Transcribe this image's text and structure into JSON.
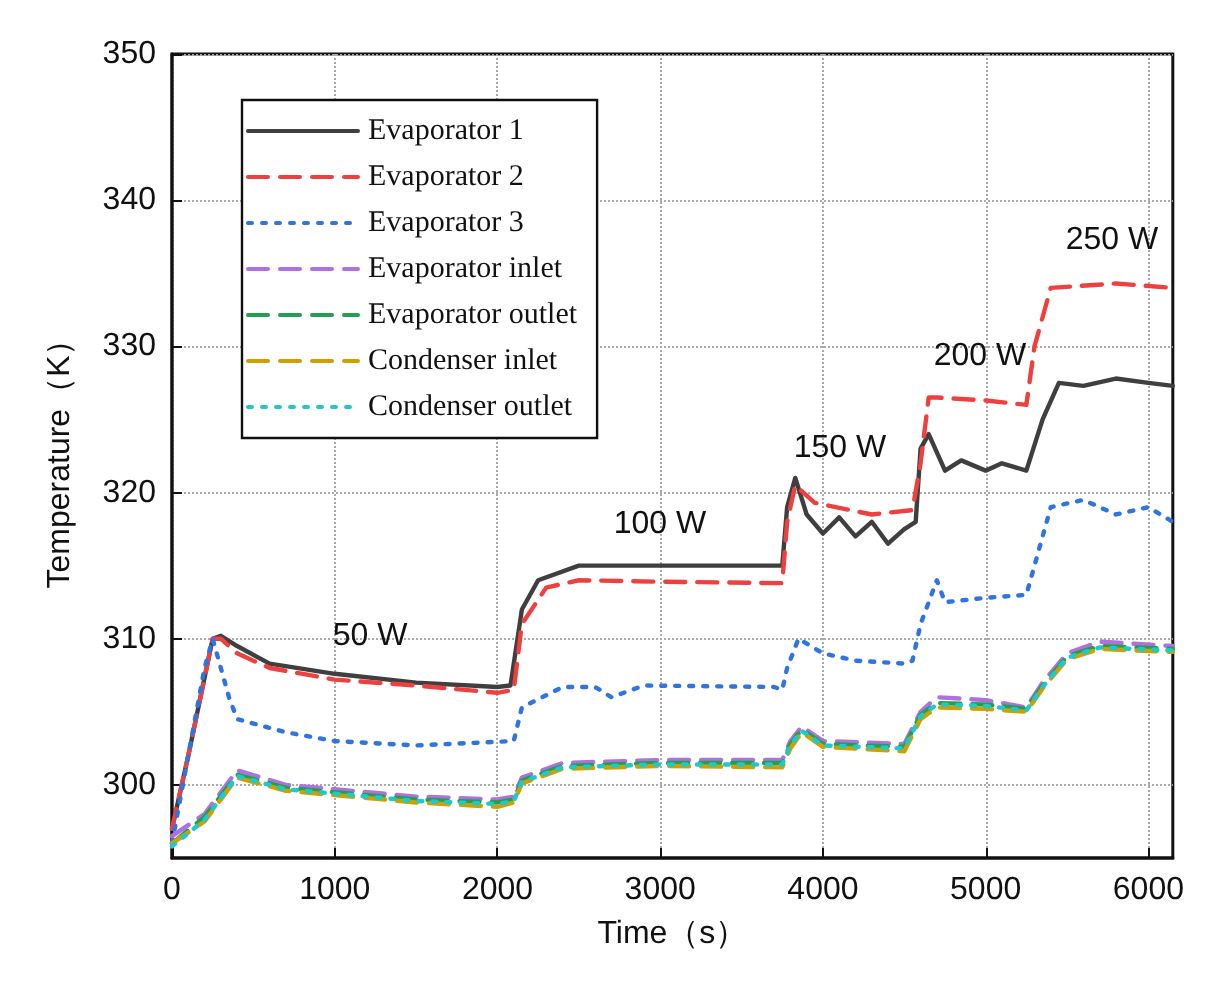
{
  "chart_data": {
    "type": "line",
    "xlabel": "Time（s）",
    "ylabel": "Temperature（K）",
    "xlim": [
      0,
      6150
    ],
    "ylim": [
      295,
      350
    ],
    "xticks": [
      0,
      1000,
      2000,
      3000,
      4000,
      5000,
      6000
    ],
    "yticks": [
      300,
      310,
      320,
      330,
      340,
      350
    ],
    "grid": true,
    "legend": "top left",
    "marker": "none",
    "annotations": [
      "50 W",
      "100 W",
      "150 W",
      "200 W",
      "250 W"
    ],
    "series": [
      {
        "name": "Evaporator 1",
        "color": "#3f3f3f",
        "line_style": "solid",
        "x": [
          0,
          100,
          250,
          300,
          400,
          600,
          1000,
          1500,
          2000,
          2080,
          2150,
          2250,
          2500,
          3000,
          3500,
          3750,
          3780,
          3830,
          3900,
          4000,
          4100,
          4200,
          4300,
          4400,
          4500,
          4570,
          4600,
          4650,
          4750,
          4850,
          5000,
          5100,
          5250,
          5350,
          5450,
          5600,
          5800,
          6000,
          6150
        ],
        "values": [
          297,
          302,
          310,
          310.2,
          309.5,
          308.3,
          307.6,
          307,
          306.7,
          306.8,
          312,
          314,
          315,
          315,
          315,
          315,
          319,
          321,
          318.5,
          317.2,
          318.3,
          317,
          318,
          316.5,
          317.5,
          318,
          323,
          324,
          321.5,
          322.2,
          321.5,
          322,
          321.5,
          325,
          327.5,
          327.3,
          327.8,
          327.5,
          327.3
        ]
      },
      {
        "name": "Evaporator 2",
        "color": "#ef4040",
        "line_style": "dashed",
        "x": [
          0,
          100,
          250,
          300,
          400,
          600,
          1000,
          1500,
          2000,
          2100,
          2150,
          2300,
          2500,
          3000,
          3750,
          3780,
          3830,
          3950,
          4300,
          4550,
          4600,
          4650,
          4700,
          5000,
          5250,
          5300,
          5400,
          5800,
          6150
        ],
        "values": [
          297,
          302,
          310,
          310,
          309,
          308,
          307.2,
          306.8,
          306.3,
          306.5,
          311,
          313.5,
          314,
          313.9,
          313.8,
          318,
          320.5,
          319.3,
          318.5,
          318.8,
          322,
          326.5,
          326.5,
          326.3,
          326,
          330,
          334,
          334.3,
          334
        ]
      },
      {
        "name": "Evaporator 3",
        "color": "#2f74e0",
        "line_style": "dotted",
        "x": [
          0,
          200,
          250,
          350,
          400,
          700,
          1000,
          1500,
          2100,
          2150,
          2400,
          2600,
          2700,
          2900,
          3700,
          3750,
          3780,
          3850,
          4000,
          4200,
          4500,
          4550,
          4600,
          4700,
          4750,
          5000,
          5250,
          5300,
          5400,
          5600,
          5800,
          6000,
          6150
        ],
        "values": [
          296,
          308,
          310,
          306,
          304.5,
          303.6,
          303,
          302.7,
          303,
          305.3,
          306.7,
          306.7,
          306,
          306.8,
          306.7,
          306.5,
          308,
          310,
          309,
          308.5,
          308.3,
          308.5,
          311,
          314,
          312.5,
          312.8,
          313,
          315,
          319,
          319.5,
          318.5,
          319,
          318
        ]
      },
      {
        "name": "Evaporator inlet",
        "color": "#b070e0",
        "line_style": "dashed",
        "x": [
          0,
          200,
          400,
          700,
          1000,
          1500,
          2000,
          2100,
          2150,
          2400,
          3000,
          3750,
          3800,
          3870,
          4000,
          4500,
          4600,
          4700,
          5000,
          5250,
          5350,
          5500,
          5700,
          6150
        ],
        "values": [
          296.5,
          298,
          301,
          300,
          299.7,
          299.2,
          299,
          299.2,
          300.5,
          301.5,
          301.7,
          301.7,
          303,
          304,
          303,
          302.8,
          305,
          306,
          305.8,
          305.3,
          307,
          309,
          309.8,
          309.5
        ]
      },
      {
        "name": "Evaporator outlet",
        "color": "#20a050",
        "line_style": "dashed",
        "x": [
          0,
          200,
          400,
          700,
          1000,
          1500,
          2000,
          2100,
          2150,
          2400,
          3000,
          3750,
          3800,
          3870,
          4000,
          4500,
          4600,
          4700,
          5000,
          5250,
          5350,
          5500,
          5700,
          6150
        ],
        "values": [
          296,
          297.8,
          300.7,
          299.8,
          299.5,
          299,
          298.8,
          299,
          300.3,
          301.3,
          301.5,
          301.5,
          302.8,
          303.8,
          302.8,
          302.6,
          304.8,
          305.6,
          305.5,
          305.2,
          306.8,
          308.8,
          309.5,
          309.3
        ]
      },
      {
        "name": "Condenser inlet",
        "color": "#d0a000",
        "line_style": "dashed",
        "x": [
          0,
          200,
          400,
          700,
          1000,
          1500,
          2000,
          2100,
          2150,
          2400,
          3000,
          3750,
          3800,
          3870,
          4000,
          4500,
          4600,
          4700,
          5000,
          5250,
          5350,
          5500,
          5700,
          6150
        ],
        "values": [
          296,
          297.5,
          300.5,
          299.6,
          299.3,
          298.8,
          298.5,
          298.8,
          300.1,
          301.1,
          301.3,
          301.2,
          302.5,
          303.6,
          302.6,
          302.3,
          304.5,
          305.3,
          305.2,
          305,
          306.6,
          308.6,
          309.3,
          309.1
        ]
      },
      {
        "name": "Condenser outlet",
        "color": "#20c8c8",
        "line_style": "dotted",
        "x": [
          0,
          200,
          400,
          700,
          1000,
          1500,
          2000,
          2100,
          2150,
          2400,
          3000,
          3750,
          3800,
          3870,
          4000,
          4500,
          4600,
          4700,
          5000,
          5250,
          5350,
          5500,
          5700,
          6150
        ],
        "values": [
          295.8,
          297.6,
          300.6,
          299.7,
          299.4,
          298.9,
          298.7,
          298.9,
          300.2,
          301.2,
          301.4,
          301.4,
          302.7,
          303.7,
          302.7,
          302.5,
          304.7,
          305.5,
          305.4,
          305.1,
          306.7,
          308.7,
          309.4,
          309.2
        ]
      }
    ]
  }
}
